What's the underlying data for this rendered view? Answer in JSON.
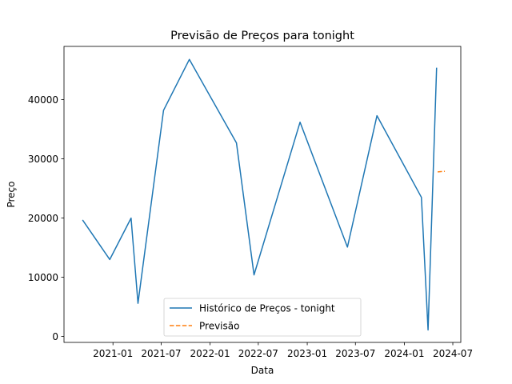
{
  "chart_data": {
    "type": "line",
    "title": "Previsão de Preços para tonight",
    "xlabel": "Data",
    "ylabel": "Preço",
    "x_axis_type": "date",
    "xlim": [
      "2020-07-01",
      "2024-07-31"
    ],
    "ylim": [
      -1000,
      49000
    ],
    "x_ticks": [
      "2021-01",
      "2021-07",
      "2022-01",
      "2022-07",
      "2023-01",
      "2023-07",
      "2024-01",
      "2024-07"
    ],
    "y_ticks": [
      0,
      10000,
      20000,
      30000,
      40000
    ],
    "grid": false,
    "legend_position": "lower-center",
    "series": [
      {
        "name": "Histórico de Preços - tonight",
        "color": "#1f77b4",
        "style": "solid",
        "points": [
          {
            "x": "2020-09-10",
            "y": 19600
          },
          {
            "x": "2020-12-20",
            "y": 13000
          },
          {
            "x": "2021-03-10",
            "y": 20000
          },
          {
            "x": "2021-04-05",
            "y": 5600
          },
          {
            "x": "2021-07-10",
            "y": 38200
          },
          {
            "x": "2021-10-15",
            "y": 46800
          },
          {
            "x": "2022-04-10",
            "y": 32700
          },
          {
            "x": "2022-06-15",
            "y": 10400
          },
          {
            "x": "2022-12-05",
            "y": 36200
          },
          {
            "x": "2023-06-01",
            "y": 15100
          },
          {
            "x": "2023-09-20",
            "y": 37300
          },
          {
            "x": "2024-03-05",
            "y": 23500
          },
          {
            "x": "2024-03-30",
            "y": 1100
          },
          {
            "x": "2024-05-01",
            "y": 45300
          }
        ]
      },
      {
        "name": "Previsão",
        "color": "#ff7f0e",
        "style": "dashed",
        "points": [
          {
            "x": "2024-05-05",
            "y": 27800
          },
          {
            "x": "2024-06-01",
            "y": 27900
          }
        ]
      }
    ]
  }
}
